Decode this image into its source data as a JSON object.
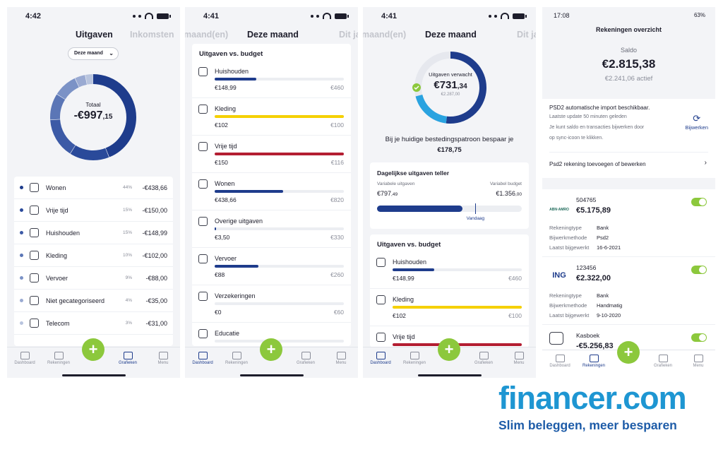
{
  "colors": {
    "navy": "#1e3c8c",
    "green": "#8cc83c",
    "yellow": "#f5d000",
    "red": "#b41e32",
    "brand_blue": "#1e96d2"
  },
  "nav": {
    "dashboard": "Dashboard",
    "rekeningen": "Rekeningen",
    "grafieken": "Grafieken",
    "menu": "Menu",
    "plus": "+"
  },
  "screen1": {
    "time": "4:42",
    "tab_active": "Uitgaven",
    "tab_inactive": "Inkomsten",
    "period": "Deze maand",
    "donut_label": "Totaal",
    "donut_amount": "-€997",
    "donut_cents": ",15",
    "categories": [
      {
        "name": "Wonen",
        "pct": "44%",
        "amount": "-€438,66",
        "icon": "home-icon",
        "share": 0.44
      },
      {
        "name": "Vrije tijd",
        "pct": "15%",
        "amount": "-€150,00",
        "icon": "image-icon",
        "share": 0.15
      },
      {
        "name": "Huishouden",
        "pct": "15%",
        "amount": "-€148,99",
        "icon": "bag-icon",
        "share": 0.15
      },
      {
        "name": "Kleding",
        "pct": "10%",
        "amount": "-€102,00",
        "icon": "shirt-icon",
        "share": 0.1
      },
      {
        "name": "Vervoer",
        "pct": "9%",
        "amount": "-€88,00",
        "icon": "car-icon",
        "share": 0.09
      },
      {
        "name": "Niet gecategoriseerd",
        "pct": "4%",
        "amount": "-€35,00",
        "icon": "question-icon",
        "share": 0.04
      },
      {
        "name": "Telecom",
        "pct": "3%",
        "amount": "-€31,00",
        "icon": "devices-icon",
        "share": 0.03
      }
    ]
  },
  "screen2": {
    "time": "4:41",
    "tab_left": "maand(en)",
    "tab_active": "Deze maand",
    "tab_right": "Dit ja",
    "title": "Uitgaven vs. budget",
    "rows": [
      {
        "name": "Huishouden",
        "spent": "€148,99",
        "budget": "€460",
        "ratio": 0.32,
        "color": "#1e3c8c",
        "icon": "bag-icon"
      },
      {
        "name": "Kleding",
        "spent": "€102",
        "budget": "€100",
        "ratio": 1.0,
        "color": "#f5d000",
        "icon": "shirt-icon"
      },
      {
        "name": "Vrije tijd",
        "spent": "€150",
        "budget": "€116",
        "ratio": 1.0,
        "color": "#b41e32",
        "icon": "image-icon"
      },
      {
        "name": "Wonen",
        "spent": "€438,66",
        "budget": "€820",
        "ratio": 0.53,
        "color": "#1e3c8c",
        "icon": "home-icon"
      },
      {
        "name": "Overige uitgaven",
        "spent": "€3,50",
        "budget": "€330",
        "ratio": 0.01,
        "color": "#1e3c8c",
        "icon": "register-icon"
      },
      {
        "name": "Vervoer",
        "spent": "€88",
        "budget": "€260",
        "ratio": 0.34,
        "color": "#1e3c8c",
        "icon": "car-icon"
      },
      {
        "name": "Verzekeringen",
        "spent": "€0",
        "budget": "€60",
        "ratio": 0,
        "color": "#1e3c8c",
        "icon": "umbrella-icon"
      },
      {
        "name": "Educatie",
        "spent": "",
        "budget": "",
        "ratio": 0,
        "color": "#1e3c8c",
        "icon": "graduation-icon"
      }
    ]
  },
  "screen3": {
    "time": "4:41",
    "tab_left": "maand(en)",
    "tab_active": "Deze maand",
    "tab_right": "Dit ja",
    "donut_label": "Uitgaven verwacht",
    "donut_amount": "€731",
    "donut_cents": ",34",
    "donut_sub": "€2.287,00",
    "savings_text": "Bij je huidige bestedingspatroon bespaar je",
    "savings_amount": "€178,75",
    "daily_title": "Dagelijkse uitgaven teller",
    "var_spent_label": "Variabele uitgaven",
    "var_spent": "€797",
    "var_spent_cents": ",49",
    "var_budget_label": "Variabel budget",
    "var_budget": "€1.356",
    "var_budget_cents": ",00",
    "daily_ratio": 0.59,
    "today_ratio": 0.68,
    "today_label": "Vandaag",
    "budget_title": "Uitgaven vs. budget",
    "rows": [
      {
        "name": "Huishouden",
        "spent": "€148,99",
        "budget": "€460",
        "ratio": 0.32,
        "color": "#1e3c8c",
        "icon": "bag-icon"
      },
      {
        "name": "Kleding",
        "spent": "€102",
        "budget": "€100",
        "ratio": 1.0,
        "color": "#f5d000",
        "icon": "shirt-icon"
      },
      {
        "name": "Vrije tijd",
        "spent": "",
        "budget": "",
        "ratio": 1.0,
        "color": "#b41e32",
        "icon": "image-icon"
      }
    ]
  },
  "screen4": {
    "time": "17:08",
    "battery": "63%",
    "title": "Rekeningen overzicht",
    "saldo_label": "Saldo",
    "saldo": "€2.815,38",
    "actief": "€2.241,06 actief",
    "psd2_title": "PSD2 automatische import beschikbaar.",
    "psd2_update": "Laatste update 50 minuten geleden",
    "psd2_text1": "Je kunt saldo en transacties bijwerken door",
    "psd2_text2": "op sync-icoon te klikken.",
    "bijwerken": "Bijwerken",
    "psd2_link": "Psd2 rekening toevoegen of bewerken",
    "accounts": [
      {
        "logo": "ABN·AMRO",
        "number": "504765",
        "balance": "€5.175,89",
        "type_label": "Rekeningtype",
        "type": "Bank",
        "method_label": "Bijwerkmethode",
        "method": "Psd2",
        "updated_label": "Laatst bijgewerkt",
        "updated": "16-6-2021"
      },
      {
        "logo": "ING",
        "number": "123456",
        "balance": "€2.322,00",
        "type_label": "Rekeningtype",
        "type": "Bank",
        "method_label": "Bijwerkmethode",
        "method": "Handmatig",
        "updated_label": "Laatst bijgewerkt",
        "updated": "9-10-2020"
      },
      {
        "logo": "",
        "number": "Kasboek",
        "balance": "-€5.256,83"
      }
    ]
  },
  "brand": {
    "logo": "financer.com",
    "slogan": "Slim beleggen, meer besparen"
  }
}
